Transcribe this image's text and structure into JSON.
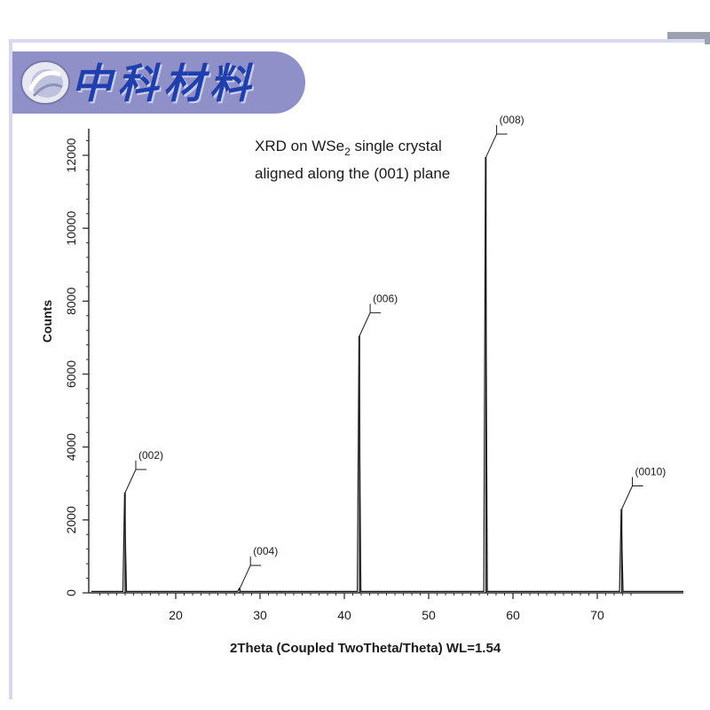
{
  "banner": {
    "title": "中科材料",
    "logo_icon": "shell-logo-icon",
    "bg": "#9090c8",
    "title_color": "#1f3fae"
  },
  "chart_data": {
    "type": "line",
    "title_line1_prefix": "XRD on WSe",
    "title_line1_sub": "2",
    "title_line1_suffix": " single crystal",
    "title_line2": "aligned along the (001) plane",
    "xlabel": "2Theta (Coupled TwoTheta/Theta) WL=1.54",
    "ylabel": "Counts",
    "xlim": [
      10,
      74
    ],
    "ylim": [
      0,
      13000
    ],
    "xticks": [
      20,
      30,
      40,
      50,
      60,
      70
    ],
    "yticks": [
      0,
      2000,
      4000,
      6000,
      8000,
      10000,
      12000
    ],
    "grid": false,
    "series": [
      {
        "peaks": [
          {
            "x": 14.0,
            "y": 2750,
            "label": "(002)"
          },
          {
            "x": 27.6,
            "y": 120,
            "label": "(004)"
          },
          {
            "x": 41.8,
            "y": 7050,
            "label": "(006)"
          },
          {
            "x": 56.8,
            "y": 11950,
            "label": "(008)"
          },
          {
            "x": 72.9,
            "y": 2300,
            "label": "(0010)"
          }
        ]
      }
    ]
  }
}
